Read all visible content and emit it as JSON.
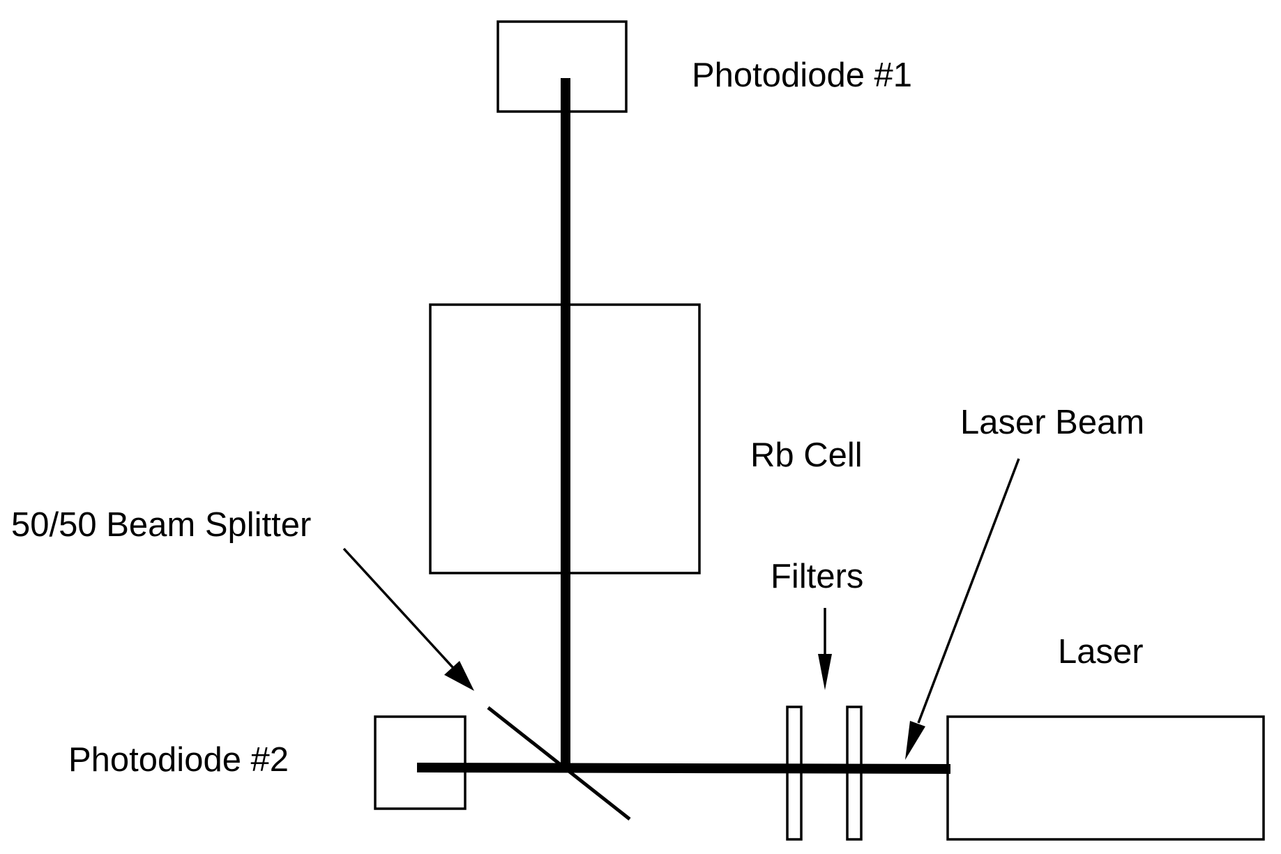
{
  "labels": {
    "photodiode1": "Photodiode #1",
    "photodiode2": "Photodiode #2",
    "rb_cell": "Rb Cell",
    "beam_splitter": "50/50 Beam Splitter",
    "filters": "Filters",
    "laser_beam": "Laser Beam",
    "laser": "Laser"
  },
  "colors": {
    "line": "#000000",
    "background": "#ffffff"
  }
}
